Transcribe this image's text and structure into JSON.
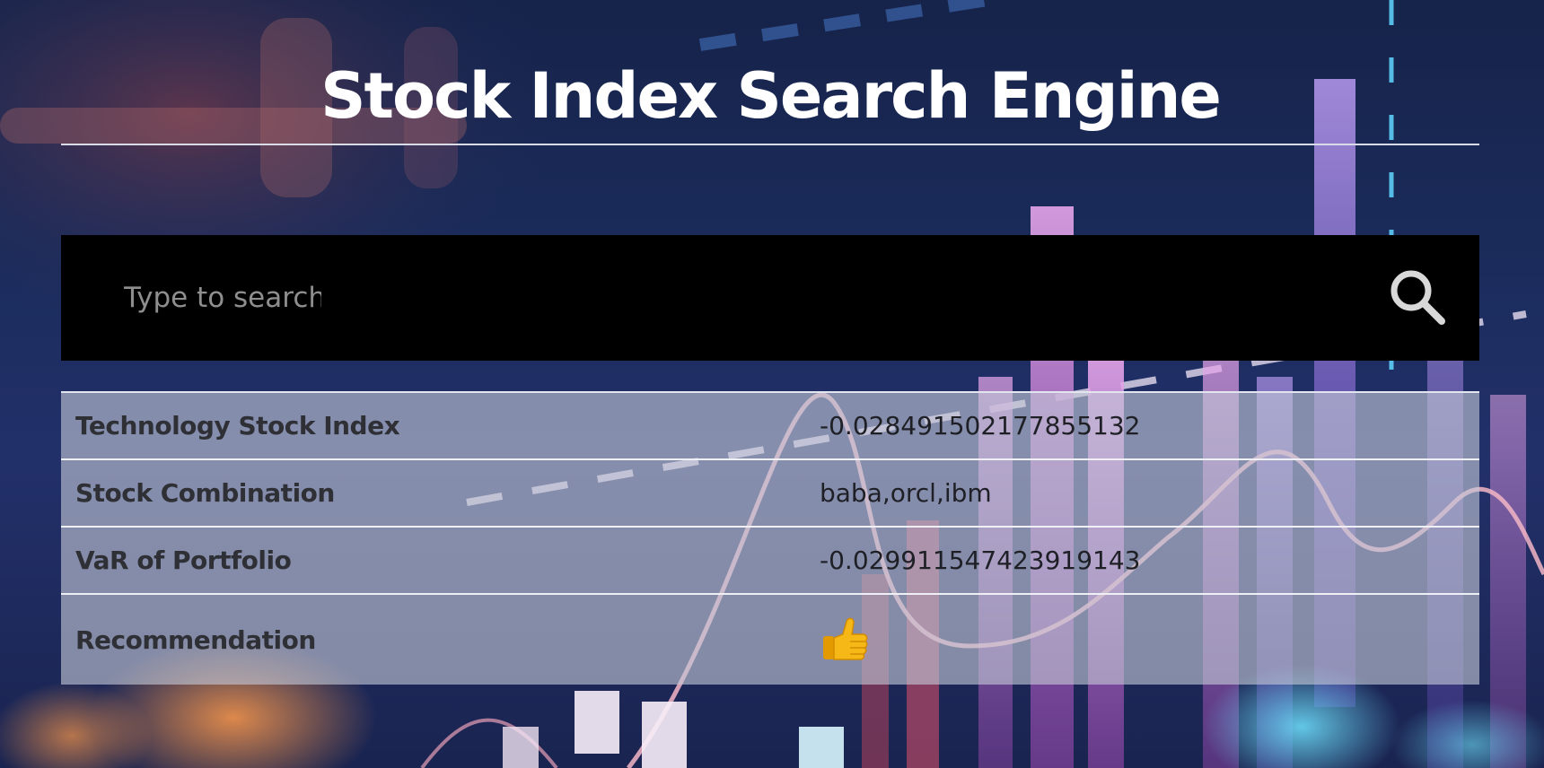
{
  "header": {
    "title": "Stock Index Search Engine"
  },
  "search": {
    "placeholder": "Type to search",
    "button_icon": "search-icon"
  },
  "results": {
    "rows": [
      {
        "label": "Technology Stock Index",
        "value": "-0.028491502177855132"
      },
      {
        "label": "Stock Combination",
        "value": "baba,orcl,ibm"
      },
      {
        "label": "VaR of Portfolio",
        "value": "-0.029911547423919143"
      },
      {
        "label": "Recommendation",
        "icon": "thumbs-up-icon"
      }
    ]
  },
  "colors": {
    "title": "#ffffff",
    "search_bar": "#000000",
    "table_bg": "#c4c8d6",
    "thumb": "#f4b400"
  }
}
